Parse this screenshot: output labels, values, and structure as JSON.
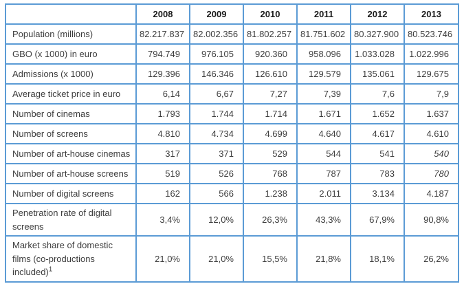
{
  "page": {
    "background": "#FFFFFF"
  },
  "table": {
    "border_color": "#5B9BD5",
    "text_color": "#3D3D3D",
    "header_text_color": "#1A1A1A",
    "header": [
      "",
      "2008",
      "2009",
      "2010",
      "2011",
      "2012",
      "2013"
    ],
    "rows": [
      {
        "label": "Population (millions)",
        "values": [
          "82.217.837",
          "82.002.356",
          "81.802.257",
          "81.751.602",
          "80.327.900",
          "80.523.746"
        ]
      },
      {
        "label": "GBO (x 1000) in euro",
        "values": [
          "794.749",
          "976.105",
          "920.360",
          "958.096",
          "1.033.028",
          "1.022.996"
        ]
      },
      {
        "label": "Admissions (x 1000)",
        "values": [
          "129.396",
          "146.346",
          "126.610",
          "129.579",
          "135.061",
          "129.675"
        ]
      },
      {
        "label": "Average ticket price in euro",
        "values": [
          "6,14",
          "6,67",
          "7,27",
          "7,39",
          "7,6",
          "7,9"
        ]
      },
      {
        "label": "Number of cinemas",
        "values": [
          "1.793",
          "1.744",
          "1.714",
          "1.671",
          "1.652",
          "1.637"
        ]
      },
      {
        "label": "Number of screens",
        "values": [
          "4.810",
          "4.734",
          "4.699",
          "4.640",
          "4.617",
          "4.610"
        ]
      },
      {
        "label": "Number of art-house cinemas",
        "values": [
          "317",
          "371",
          "529",
          "544",
          "541",
          "540"
        ],
        "italic_value_indexes": [
          5
        ]
      },
      {
        "label": "Number of art-house screens",
        "values": [
          "519",
          "526",
          "768",
          "787",
          "783",
          "780"
        ],
        "italic_value_indexes": [
          5
        ]
      },
      {
        "label": "Number of digital screens",
        "values": [
          "162",
          "566",
          "1.238",
          "2.011",
          "3.134",
          "4.187"
        ]
      },
      {
        "label": "Penetration rate of digital screens",
        "values": [
          "3,4%",
          "12,0%",
          "26,3%",
          "43,3%",
          "67,9%",
          "90,8%"
        ]
      },
      {
        "label": "Market share of domestic films (co-productions included)",
        "footnote_marker": "1",
        "values": [
          "21,0%",
          "21,0%",
          "15,5%",
          "21,8%",
          "18,1%",
          "26,2%"
        ]
      }
    ]
  }
}
